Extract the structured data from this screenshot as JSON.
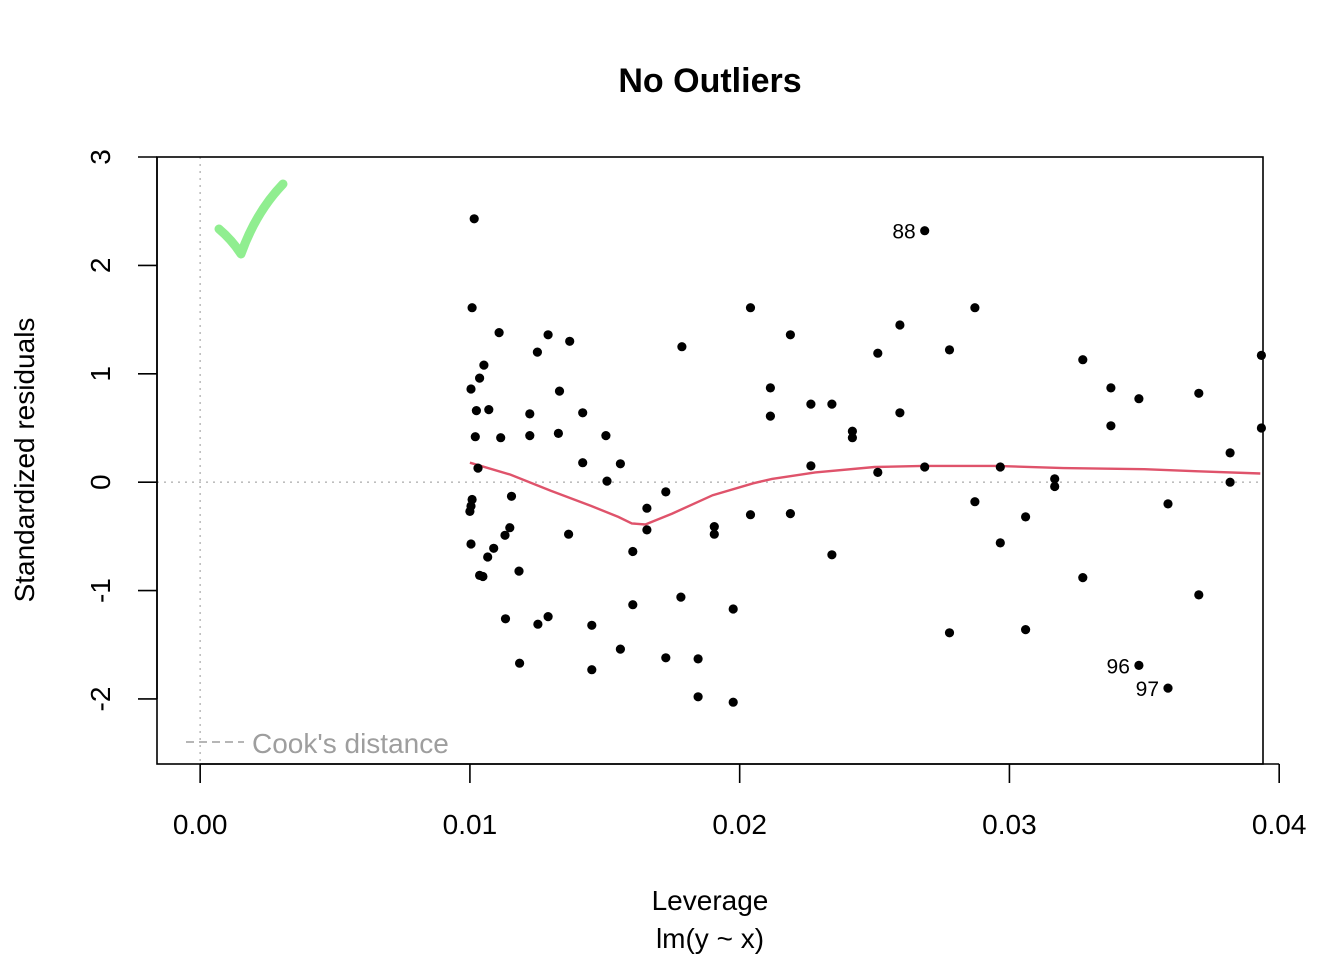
{
  "chart_data": {
    "type": "scatter",
    "title": "No Outliers",
    "xlabel": "Leverage",
    "xlabel_sub": "lm(y ~ x)",
    "ylabel": "Standardized residuals",
    "xlim": [
      -0.0016,
      0.0394
    ],
    "ylim": [
      -2.6,
      3.0
    ],
    "x_ticks": [
      0.0,
      0.01,
      0.02,
      0.03,
      0.04
    ],
    "x_tick_labels": [
      "0.00",
      "0.01",
      "0.02",
      "0.03",
      "0.04"
    ],
    "y_ticks": [
      -2,
      -1,
      0,
      1,
      2,
      3
    ],
    "y_tick_labels": [
      "-2",
      "-1",
      "0",
      "1",
      "2",
      "3"
    ],
    "grid": false,
    "reference_lines": {
      "horizontal_y": 0,
      "vertical_x": 0,
      "style": "dotted",
      "color": "#bebebe"
    },
    "legend": {
      "label": "Cook's distance",
      "placement": "bottom-left",
      "color": "#9e9e9e"
    },
    "checkmark": {
      "color": "#90ee90",
      "placement": "top-left"
    },
    "points": [
      {
        "x": 0.01016,
        "y": 2.43
      },
      {
        "x": 0.01008,
        "y": 1.61
      },
      {
        "x": 0.01108,
        "y": 1.38
      },
      {
        "x": 0.0129,
        "y": 1.36
      },
      {
        "x": 0.0137,
        "y": 1.3
      },
      {
        "x": 0.0125,
        "y": 1.2
      },
      {
        "x": 0.01052,
        "y": 1.08
      },
      {
        "x": 0.01036,
        "y": 0.96
      },
      {
        "x": 0.01004,
        "y": 0.86
      },
      {
        "x": 0.01332,
        "y": 0.84
      },
      {
        "x": 0.01024,
        "y": 0.66
      },
      {
        "x": 0.0107,
        "y": 0.67
      },
      {
        "x": 0.01222,
        "y": 0.63
      },
      {
        "x": 0.01418,
        "y": 0.64
      },
      {
        "x": 0.0102,
        "y": 0.42
      },
      {
        "x": 0.01114,
        "y": 0.41
      },
      {
        "x": 0.01222,
        "y": 0.43
      },
      {
        "x": 0.01328,
        "y": 0.45
      },
      {
        "x": 0.01504,
        "y": 0.43
      },
      {
        "x": 0.01418,
        "y": 0.18
      },
      {
        "x": 0.01558,
        "y": 0.17
      },
      {
        "x": 0.0103,
        "y": 0.13
      },
      {
        "x": 0.01508,
        "y": 0.01
      },
      {
        "x": 0.01008,
        "y": -0.16
      },
      {
        "x": 0.01004,
        "y": -0.22
      },
      {
        "x": 0.01,
        "y": -0.27
      },
      {
        "x": 0.01154,
        "y": -0.13
      },
      {
        "x": 0.01656,
        "y": -0.24
      },
      {
        "x": 0.01726,
        "y": -0.09
      },
      {
        "x": 0.01656,
        "y": -0.44
      },
      {
        "x": 0.01148,
        "y": -0.42
      },
      {
        "x": 0.0113,
        "y": -0.49
      },
      {
        "x": 0.01366,
        "y": -0.48
      },
      {
        "x": 0.01004,
        "y": -0.57
      },
      {
        "x": 0.01088,
        "y": -0.61
      },
      {
        "x": 0.01066,
        "y": -0.69
      },
      {
        "x": 0.01604,
        "y": -0.64
      },
      {
        "x": 0.01036,
        "y": -0.86
      },
      {
        "x": 0.01048,
        "y": -0.87
      },
      {
        "x": 0.01182,
        "y": -0.82
      },
      {
        "x": 0.01604,
        "y": -1.13
      },
      {
        "x": 0.01132,
        "y": -1.26
      },
      {
        "x": 0.0129,
        "y": -1.24
      },
      {
        "x": 0.01252,
        "y": -1.31
      },
      {
        "x": 0.01452,
        "y": -1.32
      },
      {
        "x": 0.01558,
        "y": -1.54
      },
      {
        "x": 0.01184,
        "y": -1.67
      },
      {
        "x": 0.01452,
        "y": -1.73
      },
      {
        "x": 0.01726,
        "y": -1.62
      },
      {
        "x": 0.01786,
        "y": 1.25
      },
      {
        "x": 0.01782,
        "y": -1.06
      },
      {
        "x": 0.01906,
        "y": -0.41
      },
      {
        "x": 0.01906,
        "y": -0.48
      },
      {
        "x": 0.01846,
        "y": -1.63
      },
      {
        "x": 0.01846,
        "y": -1.98
      },
      {
        "x": 0.01976,
        "y": -1.17
      },
      {
        "x": 0.01976,
        "y": -2.03
      },
      {
        "x": 0.0204,
        "y": 1.61
      },
      {
        "x": 0.02114,
        "y": 0.87
      },
      {
        "x": 0.02114,
        "y": 0.61
      },
      {
        "x": 0.0204,
        "y": -0.3
      },
      {
        "x": 0.02188,
        "y": 1.36
      },
      {
        "x": 0.02264,
        "y": 0.72
      },
      {
        "x": 0.02342,
        "y": 0.72
      },
      {
        "x": 0.02188,
        "y": -0.29
      },
      {
        "x": 0.02264,
        "y": 0.15
      },
      {
        "x": 0.02342,
        "y": -0.67
      },
      {
        "x": 0.02418,
        "y": 0.47
      },
      {
        "x": 0.02418,
        "y": 0.41
      },
      {
        "x": 0.02512,
        "y": 1.19
      },
      {
        "x": 0.02512,
        "y": 0.09
      },
      {
        "x": 0.02594,
        "y": 1.45
      },
      {
        "x": 0.02594,
        "y": 0.64
      },
      {
        "x": 0.02686,
        "y": 2.32,
        "label": "88"
      },
      {
        "x": 0.02686,
        "y": 0.14
      },
      {
        "x": 0.02778,
        "y": 1.22
      },
      {
        "x": 0.02778,
        "y": -1.39
      },
      {
        "x": 0.02872,
        "y": 1.61
      },
      {
        "x": 0.02872,
        "y": -0.18
      },
      {
        "x": 0.02966,
        "y": 0.14
      },
      {
        "x": 0.02966,
        "y": -0.56
      },
      {
        "x": 0.0306,
        "y": -0.32
      },
      {
        "x": 0.0306,
        "y": -1.36
      },
      {
        "x": 0.03168,
        "y": 0.03
      },
      {
        "x": 0.03168,
        "y": -0.04
      },
      {
        "x": 0.03272,
        "y": 1.13
      },
      {
        "x": 0.03272,
        "y": -0.88
      },
      {
        "x": 0.03376,
        "y": 0.87
      },
      {
        "x": 0.03376,
        "y": 0.52
      },
      {
        "x": 0.0348,
        "y": 0.77
      },
      {
        "x": 0.0348,
        "y": -1.69,
        "label": "96"
      },
      {
        "x": 0.03588,
        "y": -0.2
      },
      {
        "x": 0.03588,
        "y": -1.9,
        "label": "97"
      },
      {
        "x": 0.03702,
        "y": 0.82
      },
      {
        "x": 0.03702,
        "y": -1.04
      },
      {
        "x": 0.03818,
        "y": 0.27
      },
      {
        "x": 0.03818,
        "y": 0.0
      },
      {
        "x": 0.03934,
        "y": 1.17
      },
      {
        "x": 0.03934,
        "y": 0.5
      }
    ],
    "smoother": {
      "color": "#df536b",
      "points": [
        {
          "x": 0.01,
          "y": 0.18
        },
        {
          "x": 0.0115,
          "y": 0.07
        },
        {
          "x": 0.013,
          "y": -0.08
        },
        {
          "x": 0.0145,
          "y": -0.22
        },
        {
          "x": 0.0155,
          "y": -0.32
        },
        {
          "x": 0.016,
          "y": -0.38
        },
        {
          "x": 0.0165,
          "y": -0.39
        },
        {
          "x": 0.0175,
          "y": -0.29
        },
        {
          "x": 0.019,
          "y": -0.12
        },
        {
          "x": 0.0205,
          "y": -0.01
        },
        {
          "x": 0.0212,
          "y": 0.03
        },
        {
          "x": 0.0228,
          "y": 0.09
        },
        {
          "x": 0.025,
          "y": 0.14
        },
        {
          "x": 0.0268,
          "y": 0.15
        },
        {
          "x": 0.0295,
          "y": 0.15
        },
        {
          "x": 0.032,
          "y": 0.13
        },
        {
          "x": 0.035,
          "y": 0.12
        },
        {
          "x": 0.037,
          "y": 0.1
        },
        {
          "x": 0.0393,
          "y": 0.08
        }
      ]
    }
  }
}
